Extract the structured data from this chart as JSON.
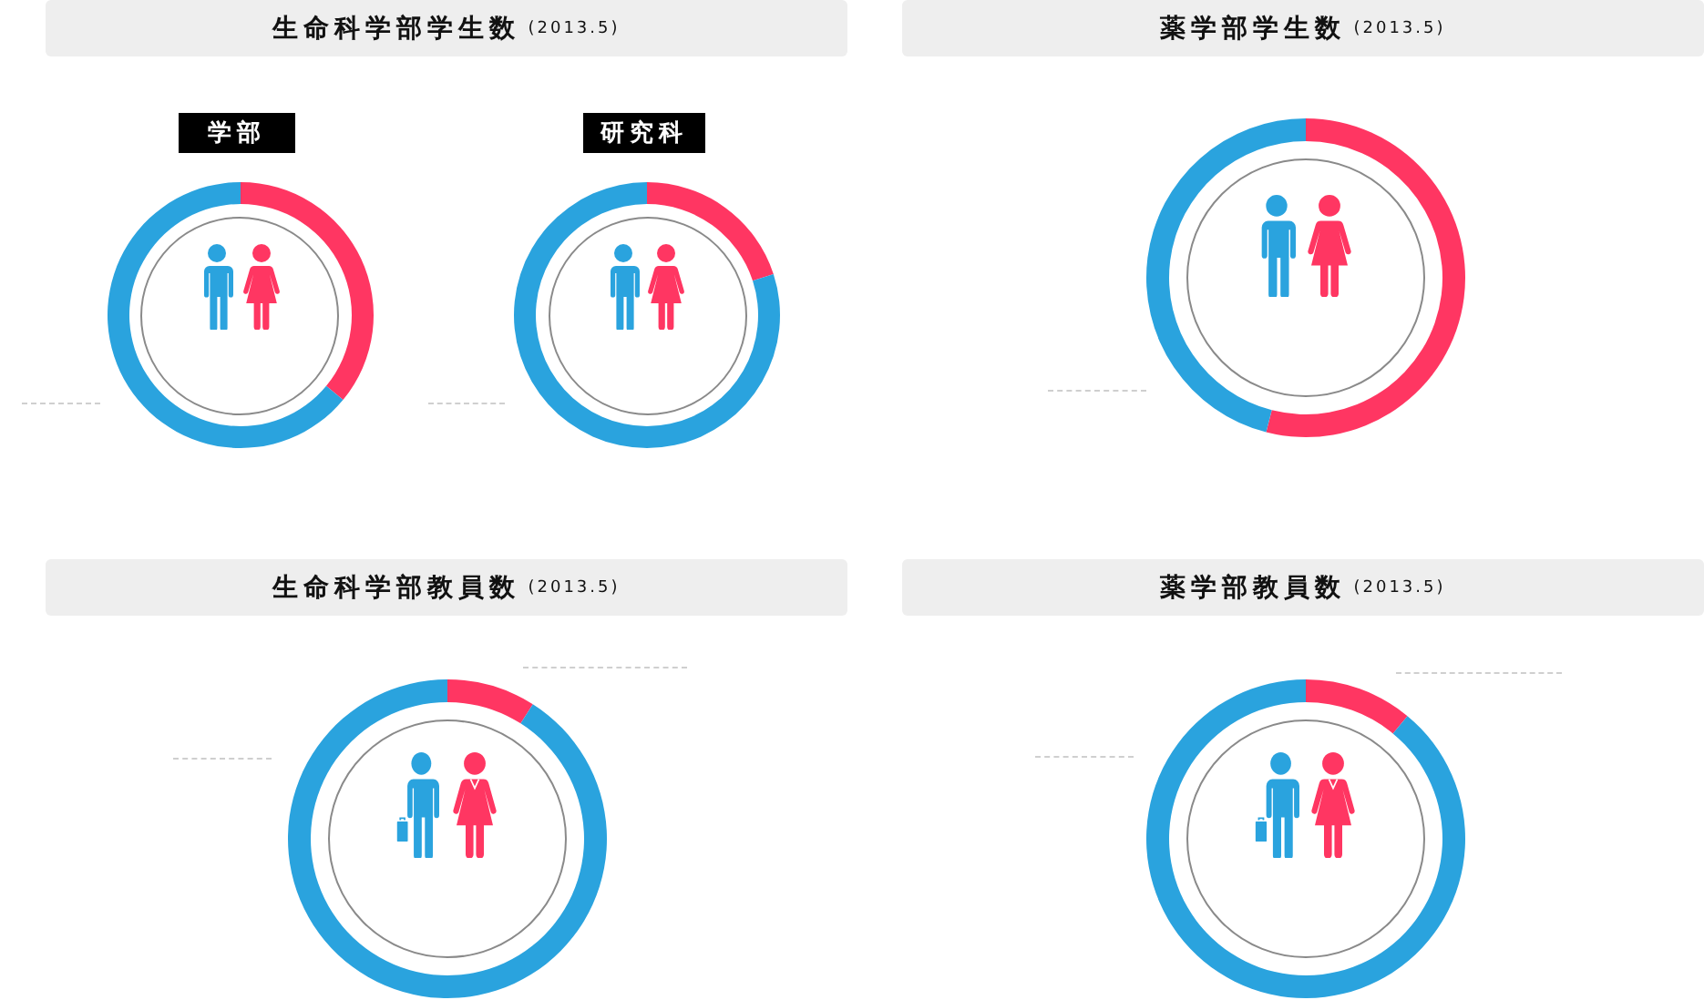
{
  "chart_data": [
    {
      "type": "donut",
      "title": "生命科学部学生数 (2013.5)",
      "subtitle": "学部",
      "categories": [
        null,
        null
      ],
      "values": [
        36,
        64
      ],
      "colors": [
        "#ff3662",
        "#2aa3de"
      ]
    },
    {
      "type": "donut",
      "subtitle": "研究科",
      "categories": [
        null,
        null
      ],
      "values": [
        20,
        80
      ],
      "colors": [
        "#ff3662",
        "#2aa3de"
      ]
    },
    {
      "type": "donut",
      "title": "薬学部学生数 (2013.5)",
      "categories": [
        null,
        null
      ],
      "values": [
        54,
        46
      ],
      "colors": [
        "#ff3662",
        "#2aa3de"
      ]
    },
    {
      "type": "donut",
      "title": "生命科学部教員数 (2013.5)",
      "categories": [
        null,
        null
      ],
      "values": [
        9,
        91
      ],
      "colors": [
        "#ff3662",
        "#2aa3de"
      ]
    },
    {
      "type": "donut",
      "title": "薬学部教員数 (2013.5)",
      "categories": [
        null,
        null
      ],
      "values": [
        11,
        89
      ],
      "colors": [
        "#ff3662",
        "#2aa3de"
      ]
    }
  ]
}
